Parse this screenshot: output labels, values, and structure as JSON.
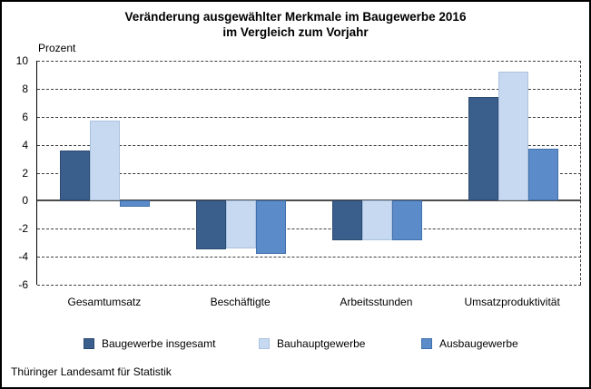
{
  "footer": {
    "source": "Thüringer Landesamt für Statistik"
  },
  "chart_data": {
    "type": "bar",
    "title_line1": "Veränderung ausgewählter Merkmale im Baugewerbe 2016",
    "title_line2": "im Vergleich zum Vorjahr",
    "unit_label": "Prozent",
    "categories": [
      "Gesamtumsatz",
      "Beschäftigte",
      "Arbeitsstunden",
      "Umsatzproduktivität"
    ],
    "series": [
      {
        "name": "Baugewerbe insgesamt",
        "color": "#3a5f8d",
        "border_color": "#2c4a70",
        "values": [
          3.6,
          -3.5,
          -2.8,
          7.4
        ]
      },
      {
        "name": "Bauhauptgewerbe",
        "color": "#c6d9f0",
        "border_color": "#aac3e0",
        "values": [
          5.7,
          -3.4,
          -2.8,
          9.2
        ]
      },
      {
        "name": "Ausbaugewerbe",
        "color": "#5b8bc9",
        "border_color": "#4171ab",
        "values": [
          -0.4,
          -3.8,
          -2.8,
          3.7
        ]
      }
    ],
    "ylim": [
      -6,
      10
    ],
    "yticks": [
      10,
      8,
      6,
      4,
      2,
      0,
      -2,
      -4,
      -6
    ],
    "grid": "horizontal-dashed",
    "legend_position": "bottom",
    "axis_color": "#000000",
    "zero_line_color": "#4d4d4d"
  }
}
